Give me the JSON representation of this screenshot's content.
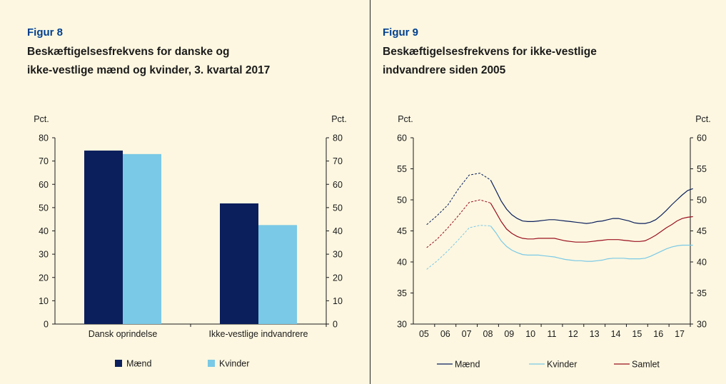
{
  "panels": [
    {
      "fig_label": "Figur 8",
      "title_line1": "Beskæftigelsesfrekvens for danske og",
      "title_line2": "ikke-vestlige mænd og kvinder, 3. kvartal 2017"
    },
    {
      "fig_label": "Figur 9",
      "title_line1": "Beskæftigelsesfrekvens for ikke-vestlige",
      "title_line2": "indvandrere siden 2005"
    }
  ],
  "colors": {
    "maend": "#0b1f5c",
    "kvinder": "#7ac9e6",
    "samlet": "#9a1020",
    "fig_label": "#003f8f"
  },
  "chart_data": [
    {
      "type": "bar",
      "title": "Beskæftigelsesfrekvens for danske og ikke-vestlige mænd og kvinder, 3. kvartal 2017",
      "unit_left": "Pct.",
      "unit_right": "Pct.",
      "ylim": [
        0,
        80
      ],
      "yticks": [
        0,
        10,
        20,
        30,
        40,
        50,
        60,
        70,
        80
      ],
      "categories": [
        "Dansk oprindelse",
        "Ikke-vestlige indvandrere"
      ],
      "series": [
        {
          "name": "Mænd",
          "color": "#0b1f5c",
          "values": [
            74.5,
            51.8
          ]
        },
        {
          "name": "Kvinder",
          "color": "#7ac9e6",
          "values": [
            73.0,
            42.5
          ]
        }
      ],
      "legend_position": "bottom",
      "grid": false
    },
    {
      "type": "line",
      "title": "Beskæftigelsesfrekvens for ikke-vestlige indvandrere siden 2005",
      "unit_left": "Pct.",
      "unit_right": "Pct.",
      "ylim": [
        30,
        60
      ],
      "yticks": [
        30,
        35,
        40,
        45,
        50,
        55,
        60
      ],
      "xticks": [
        "05",
        "06",
        "07",
        "08",
        "09",
        "10",
        "11",
        "12",
        "13",
        "14",
        "15",
        "16",
        "17"
      ],
      "dashed_until": "2008K1",
      "x": [
        "2005K1",
        "2005K3",
        "2006K1",
        "2006K3",
        "2007K1",
        "2007K3",
        "2008K1",
        "2008K2",
        "2008K3",
        "2008K4",
        "2009K1",
        "2009K2",
        "2009K3",
        "2009K4",
        "2010K1",
        "2010K2",
        "2010K3",
        "2010K4",
        "2011K1",
        "2011K2",
        "2011K3",
        "2011K4",
        "2012K1",
        "2012K2",
        "2012K3",
        "2012K4",
        "2013K1",
        "2013K2",
        "2013K3",
        "2013K4",
        "2014K1",
        "2014K2",
        "2014K3",
        "2014K4",
        "2015K1",
        "2015K2",
        "2015K3",
        "2015K4",
        "2016K1",
        "2016K2",
        "2016K3",
        "2016K4",
        "2017K1",
        "2017K2",
        "2017K3"
      ],
      "series": [
        {
          "name": "Mænd",
          "color": "#0b1f5c",
          "values": [
            46.0,
            47.5,
            49.2,
            51.8,
            54.0,
            54.3,
            53.2,
            51.5,
            49.8,
            48.5,
            47.6,
            47.0,
            46.6,
            46.5,
            46.5,
            46.6,
            46.7,
            46.8,
            46.8,
            46.7,
            46.6,
            46.5,
            46.4,
            46.3,
            46.2,
            46.3,
            46.5,
            46.6,
            46.8,
            47.0,
            47.0,
            46.8,
            46.6,
            46.3,
            46.2,
            46.2,
            46.4,
            46.8,
            47.5,
            48.3,
            49.2,
            50.0,
            50.8,
            51.5,
            51.8
          ]
        },
        {
          "name": "Samlet",
          "color": "#9a1020",
          "values": [
            42.3,
            43.7,
            45.5,
            47.5,
            49.6,
            50.0,
            49.5,
            48.0,
            46.5,
            45.3,
            44.6,
            44.1,
            43.8,
            43.7,
            43.7,
            43.8,
            43.8,
            43.8,
            43.8,
            43.6,
            43.4,
            43.3,
            43.2,
            43.2,
            43.2,
            43.3,
            43.4,
            43.5,
            43.6,
            43.6,
            43.6,
            43.5,
            43.4,
            43.3,
            43.3,
            43.4,
            43.8,
            44.3,
            44.9,
            45.5,
            46.0,
            46.6,
            47.0,
            47.2,
            47.3
          ]
        },
        {
          "name": "Kvinder",
          "color": "#7ac9e6",
          "values": [
            38.8,
            40.2,
            41.8,
            43.6,
            45.5,
            45.9,
            45.8,
            44.7,
            43.4,
            42.5,
            41.9,
            41.5,
            41.2,
            41.1,
            41.1,
            41.1,
            41.0,
            40.9,
            40.8,
            40.6,
            40.4,
            40.3,
            40.2,
            40.2,
            40.1,
            40.1,
            40.2,
            40.3,
            40.5,
            40.6,
            40.6,
            40.6,
            40.5,
            40.5,
            40.5,
            40.6,
            40.9,
            41.3,
            41.7,
            42.1,
            42.4,
            42.6,
            42.7,
            42.7,
            42.7
          ]
        }
      ],
      "legend_position": "bottom",
      "grid": false
    }
  ]
}
